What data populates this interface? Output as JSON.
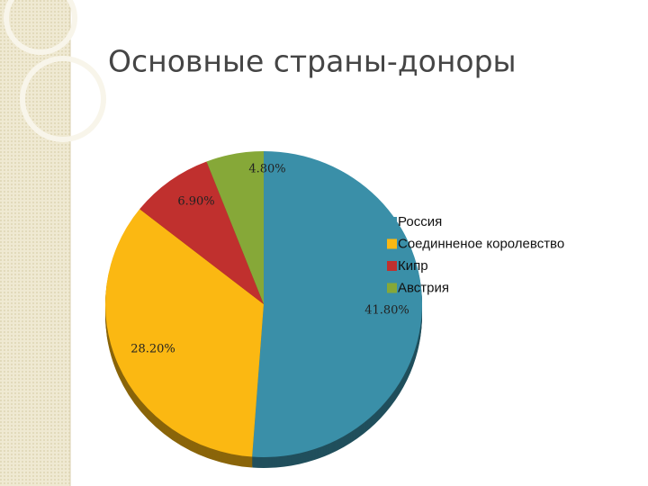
{
  "chart_data": {
    "type": "pie",
    "title": "Основные страны-доноры",
    "categories": [
      "Россия",
      "Соединненое королевство",
      "Кипр",
      "Австрия"
    ],
    "values": [
      41.8,
      28.2,
      6.9,
      4.8
    ],
    "value_labels": [
      "41.80%",
      "28.20%",
      "6.90%",
      "4.80%"
    ],
    "colors": [
      "#3a8fa8",
      "#fbb812",
      "#c0302e",
      "#86a838"
    ],
    "legend": "right"
  }
}
